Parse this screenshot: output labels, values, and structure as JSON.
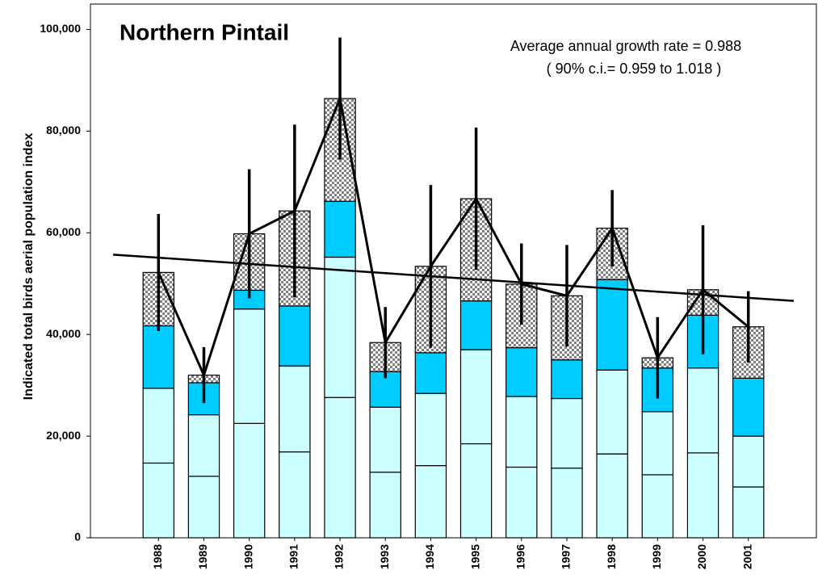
{
  "chart_data": {
    "type": "bar",
    "stacked": true,
    "title": "Northern Pintail",
    "annotations": [
      "Average annual growth rate = 0.988",
      "( 90% c.i.= 0.959 to 1.018 )"
    ],
    "y_label": "Indicated total birds aerial population index",
    "categories": [
      null,
      "1988",
      "1989",
      "1990",
      "1991",
      "1992",
      "1993",
      "1994",
      "1995",
      "1996",
      "1997",
      "1998",
      "1999",
      "2000",
      "2001",
      null
    ],
    "series": [
      {
        "color": "#ccffff",
        "values": [
          null,
          14700,
          12100,
          22500,
          16900,
          27600,
          12900,
          14200,
          18500,
          13900,
          13700,
          16500,
          12400,
          16700,
          10000,
          null
        ]
      },
      {
        "color": "#ccffff",
        "values": [
          null,
          14700,
          12100,
          22500,
          16900,
          27600,
          12800,
          14200,
          18500,
          13900,
          13700,
          16500,
          12400,
          16700,
          10000,
          null
        ]
      },
      {
        "color": "#00ccff",
        "values": [
          null,
          12300,
          6300,
          3700,
          11800,
          11000,
          7000,
          8000,
          9600,
          9600,
          7600,
          17800,
          8600,
          10400,
          11400,
          null
        ]
      },
      {
        "color": "#808080",
        "fill_pattern": "checkered",
        "values": [
          null,
          10500,
          1500,
          11100,
          18700,
          20200,
          5700,
          17000,
          20100,
          12500,
          12600,
          10100,
          2000,
          5000,
          10100,
          null
        ]
      }
    ],
    "line": {
      "color": "#000000",
      "values": [
        null,
        52200,
        32000,
        59800,
        64300,
        86400,
        38400,
        53400,
        66700,
        49900,
        47600,
        60900,
        35400,
        48800,
        41500,
        null
      ],
      "errors": [
        null,
        11500,
        5500,
        12700,
        17000,
        12000,
        7000,
        16000,
        14000,
        8000,
        10000,
        7500,
        8000,
        12700,
        7000,
        null
      ]
    },
    "trend": {
      "color": "#000000",
      "values": [
        55700,
        55093,
        54486,
        53879,
        53272,
        52665,
        52058,
        51451,
        50844,
        50237,
        49630,
        49023,
        48416,
        47809,
        47202,
        46595
      ]
    },
    "ylim": [
      0,
      105000
    ],
    "yticks": [
      0,
      {
        "value": 20000,
        "label": "20,000"
      },
      {
        "value": 40000,
        "label": "40,000"
      },
      {
        "value": 60000,
        "label": "60,000"
      },
      {
        "value": 80000,
        "label": "80,000"
      },
      {
        "value": 100000,
        "label": "100,000"
      }
    ],
    "grid": false
  }
}
